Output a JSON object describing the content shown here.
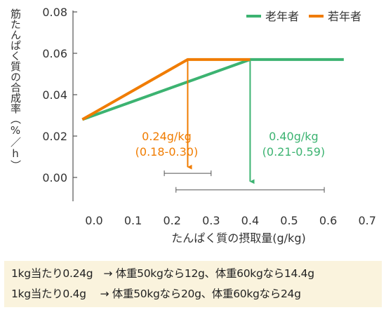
{
  "chart_data": {
    "type": "line",
    "ylabel": "筋たんぱく質の合成率（%／h）",
    "xlabel": "たんぱく質の摂取量(g/kg)",
    "x_ticks": [
      "0.0",
      "0.1",
      "0.2",
      "0.3",
      "0.4",
      "0.5",
      "0.6",
      "0.7"
    ],
    "y_ticks": [
      "0.00",
      "0.02",
      "0.04",
      "0.06",
      "0.08"
    ],
    "xlim": [
      -0.05,
      0.7
    ],
    "ylim": [
      -0.005,
      0.08
    ],
    "grid": false,
    "legend": "top-right",
    "series": [
      {
        "name": "老年者",
        "color": "#3cb371",
        "x": [
          -0.03,
          0.4,
          0.64
        ],
        "y": [
          0.028,
          0.057,
          0.057
        ]
      },
      {
        "name": "若年者",
        "color": "#f07c00",
        "x": [
          -0.03,
          0.24,
          0.4
        ],
        "y": [
          0.028,
          0.057,
          0.057
        ]
      }
    ],
    "annotations": [
      {
        "series": "若年者",
        "color": "#f07c00",
        "line1": "0.24g/kg",
        "line2": "(0.18-0.30)",
        "x": 0.24,
        "ci": [
          0.18,
          0.3
        ],
        "ci_y": 0.002
      },
      {
        "series": "老年者",
        "color": "#3cb371",
        "line1": "0.40g/kg",
        "line2": "(0.21-0.59)",
        "x": 0.4,
        "ci": [
          0.21,
          0.59
        ],
        "ci_y": -0.006
      }
    ]
  },
  "notes": [
    "1kg当たり0.24g　→ 体重50kgなら12g、体重60kgなら14.4g",
    "1kg当たり0.4g　 → 体重50kgなら20g、体重60kgなら24g"
  ]
}
